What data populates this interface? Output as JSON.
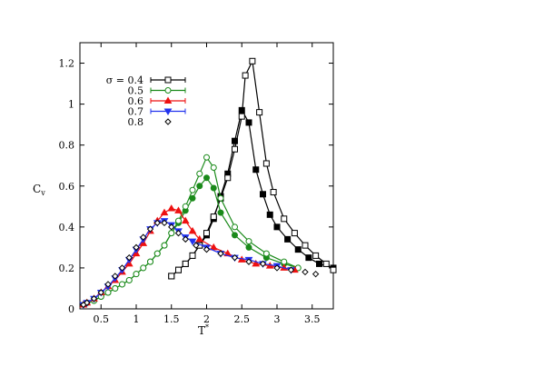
{
  "chart_data": {
    "type": "line",
    "xlabel": "T",
    "xlabel_superscript": "*",
    "ylabel": "C",
    "ylabel_subscript": "v",
    "xlim": [
      0.2,
      3.8
    ],
    "ylim": [
      0,
      1.3
    ],
    "xticks": [
      0.5,
      1,
      1.5,
      2,
      2.5,
      3,
      3.5
    ],
    "xtick_labels": [
      "0.5",
      "1",
      "1.5",
      "2",
      "2.5",
      "3",
      "3.5"
    ],
    "yticks": [
      0,
      0.2,
      0.4,
      0.6,
      0.8,
      1,
      1.2
    ],
    "ytick_labels": [
      "0",
      "0.2",
      "0.4",
      "0.6",
      "0.8",
      "1",
      "1.2"
    ],
    "grid": false,
    "legend_position": "top-left",
    "legend_prefix": "σ = ",
    "series": [
      {
        "name": "0.4",
        "color": "#000000",
        "marker": "square",
        "open_points": [
          [
            1.5,
            0.16
          ],
          [
            1.6,
            0.19
          ],
          [
            1.7,
            0.22
          ],
          [
            1.8,
            0.26
          ],
          [
            1.9,
            0.31
          ],
          [
            2.0,
            0.37
          ],
          [
            2.1,
            0.45
          ],
          [
            2.2,
            0.54
          ],
          [
            2.3,
            0.64
          ],
          [
            2.4,
            0.78
          ],
          [
            2.5,
            0.94
          ],
          [
            2.55,
            1.14
          ],
          [
            2.65,
            1.21
          ],
          [
            2.75,
            0.96
          ],
          [
            2.85,
            0.71
          ],
          [
            2.95,
            0.57
          ],
          [
            3.1,
            0.44
          ],
          [
            3.25,
            0.37
          ],
          [
            3.4,
            0.31
          ],
          [
            3.55,
            0.26
          ],
          [
            3.7,
            0.22
          ],
          [
            3.8,
            0.19
          ]
        ],
        "filled_points": [
          [
            1.5,
            0.16
          ],
          [
            1.6,
            0.19
          ],
          [
            1.7,
            0.22
          ],
          [
            1.8,
            0.26
          ],
          [
            1.9,
            0.31
          ],
          [
            2.0,
            0.36
          ],
          [
            2.1,
            0.44
          ],
          [
            2.2,
            0.55
          ],
          [
            2.3,
            0.66
          ],
          [
            2.4,
            0.82
          ],
          [
            2.5,
            0.97
          ],
          [
            2.6,
            0.91
          ],
          [
            2.7,
            0.68
          ],
          [
            2.8,
            0.56
          ],
          [
            2.9,
            0.46
          ],
          [
            3.0,
            0.4
          ],
          [
            3.15,
            0.34
          ],
          [
            3.3,
            0.29
          ],
          [
            3.45,
            0.25
          ],
          [
            3.6,
            0.22
          ],
          [
            3.8,
            0.2
          ]
        ]
      },
      {
        "name": "0.5",
        "color": "#1a8a1a",
        "marker": "circle",
        "open_points": [
          [
            0.3,
            0.03
          ],
          [
            0.4,
            0.04
          ],
          [
            0.5,
            0.06
          ],
          [
            0.6,
            0.08
          ],
          [
            0.7,
            0.1
          ],
          [
            0.8,
            0.12
          ],
          [
            0.9,
            0.14
          ],
          [
            1.0,
            0.17
          ],
          [
            1.1,
            0.2
          ],
          [
            1.2,
            0.23
          ],
          [
            1.3,
            0.27
          ],
          [
            1.4,
            0.31
          ],
          [
            1.5,
            0.37
          ],
          [
            1.6,
            0.43
          ],
          [
            1.7,
            0.5
          ],
          [
            1.8,
            0.58
          ],
          [
            1.9,
            0.66
          ],
          [
            2.0,
            0.74
          ],
          [
            2.1,
            0.69
          ],
          [
            2.2,
            0.54
          ],
          [
            2.4,
            0.4
          ],
          [
            2.6,
            0.33
          ],
          [
            2.85,
            0.27
          ],
          [
            3.1,
            0.23
          ],
          [
            3.3,
            0.2
          ]
        ],
        "filled_points": [
          [
            0.3,
            0.03
          ],
          [
            0.4,
            0.04
          ],
          [
            0.5,
            0.06
          ],
          [
            0.6,
            0.08
          ],
          [
            0.7,
            0.1
          ],
          [
            0.8,
            0.12
          ],
          [
            0.9,
            0.14
          ],
          [
            1.0,
            0.17
          ],
          [
            1.1,
            0.2
          ],
          [
            1.2,
            0.23
          ],
          [
            1.3,
            0.27
          ],
          [
            1.4,
            0.31
          ],
          [
            1.5,
            0.37
          ],
          [
            1.6,
            0.42
          ],
          [
            1.7,
            0.48
          ],
          [
            1.8,
            0.54
          ],
          [
            1.9,
            0.6
          ],
          [
            2.0,
            0.64
          ],
          [
            2.1,
            0.59
          ],
          [
            2.2,
            0.47
          ],
          [
            2.4,
            0.36
          ],
          [
            2.6,
            0.3
          ],
          [
            2.85,
            0.25
          ],
          [
            3.1,
            0.22
          ],
          [
            3.3,
            0.2
          ]
        ]
      },
      {
        "name": "0.6",
        "color": "#ee1111",
        "marker": "triangle-up",
        "points": [
          [
            0.25,
            0.02
          ],
          [
            0.3,
            0.03
          ],
          [
            0.4,
            0.05
          ],
          [
            0.5,
            0.08
          ],
          [
            0.6,
            0.11
          ],
          [
            0.7,
            0.14
          ],
          [
            0.8,
            0.18
          ],
          [
            0.9,
            0.22
          ],
          [
            1.0,
            0.27
          ],
          [
            1.1,
            0.32
          ],
          [
            1.2,
            0.38
          ],
          [
            1.3,
            0.43
          ],
          [
            1.4,
            0.47
          ],
          [
            1.5,
            0.49
          ],
          [
            1.6,
            0.48
          ],
          [
            1.7,
            0.43
          ],
          [
            1.8,
            0.38
          ],
          [
            1.9,
            0.34
          ],
          [
            2.1,
            0.3
          ],
          [
            2.3,
            0.27
          ],
          [
            2.5,
            0.24
          ],
          [
            2.7,
            0.22
          ],
          [
            2.9,
            0.21
          ],
          [
            3.1,
            0.2
          ],
          [
            3.25,
            0.19
          ]
        ]
      },
      {
        "name": "0.7",
        "color": "#2233ee",
        "marker": "triangle-down",
        "points": [
          [
            0.25,
            0.02
          ],
          [
            0.3,
            0.03
          ],
          [
            0.4,
            0.05
          ],
          [
            0.5,
            0.08
          ],
          [
            0.6,
            0.11
          ],
          [
            0.7,
            0.15
          ],
          [
            0.8,
            0.19
          ],
          [
            0.9,
            0.24
          ],
          [
            1.0,
            0.29
          ],
          [
            1.1,
            0.34
          ],
          [
            1.2,
            0.39
          ],
          [
            1.3,
            0.42
          ],
          [
            1.4,
            0.43
          ],
          [
            1.5,
            0.41
          ],
          [
            1.6,
            0.38
          ],
          [
            1.7,
            0.35
          ],
          [
            1.8,
            0.33
          ],
          [
            2.0,
            0.3
          ],
          [
            2.2,
            0.27
          ],
          [
            2.4,
            0.25
          ],
          [
            2.6,
            0.24
          ],
          [
            2.8,
            0.22
          ],
          [
            3.0,
            0.21
          ],
          [
            3.2,
            0.19
          ]
        ]
      },
      {
        "name": "0.8",
        "color": "#000000",
        "marker": "diamond",
        "points": [
          [
            0.25,
            0.02
          ],
          [
            0.3,
            0.03
          ],
          [
            0.4,
            0.05
          ],
          [
            0.5,
            0.08
          ],
          [
            0.6,
            0.12
          ],
          [
            0.7,
            0.16
          ],
          [
            0.8,
            0.2
          ],
          [
            0.9,
            0.25
          ],
          [
            1.0,
            0.3
          ],
          [
            1.1,
            0.35
          ],
          [
            1.2,
            0.39
          ],
          [
            1.3,
            0.42
          ],
          [
            1.4,
            0.42
          ],
          [
            1.5,
            0.4
          ],
          [
            1.6,
            0.37
          ],
          [
            1.7,
            0.34
          ],
          [
            1.85,
            0.31
          ],
          [
            2.0,
            0.29
          ],
          [
            2.2,
            0.27
          ],
          [
            2.4,
            0.25
          ],
          [
            2.6,
            0.23
          ],
          [
            2.8,
            0.22
          ],
          [
            3.0,
            0.2
          ],
          [
            3.2,
            0.19
          ],
          [
            3.4,
            0.18
          ],
          [
            3.55,
            0.17
          ]
        ]
      }
    ]
  }
}
